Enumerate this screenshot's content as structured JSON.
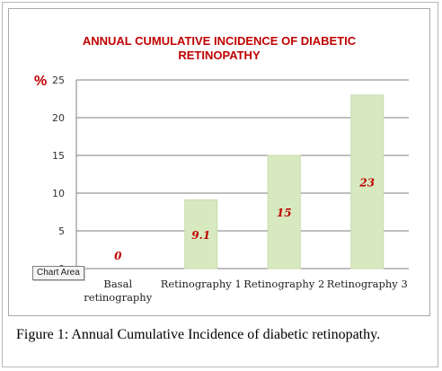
{
  "chart_data": {
    "type": "bar",
    "title_lines": [
      "ANNUAL CUMULATIVE INCIDENCE OF DIABETIC",
      "RETINOPATHY"
    ],
    "unit_label": "%",
    "categories": [
      [
        "Basal",
        "retinography"
      ],
      [
        "Retinography 1"
      ],
      [
        "Retinography 2"
      ],
      [
        "Retinography 3"
      ]
    ],
    "values": [
      0,
      9.1,
      15,
      23
    ],
    "data_labels": [
      "0",
      "9.1",
      "15",
      "23"
    ],
    "ylim": [
      0,
      25
    ],
    "yticks": [
      0,
      5,
      10,
      15,
      20,
      25
    ],
    "grid": true,
    "colors": {
      "bar_fill": "#d7e9bf",
      "bar_stroke": "#c9dcae",
      "data_label": "#c00000",
      "title": "#c00000",
      "grid": "#7f7f7f"
    }
  },
  "tooltip": "Chart Area",
  "caption": {
    "label": "Figure 1:",
    "text": " Annual Cumulative Incidence of diabetic retinopathy."
  }
}
